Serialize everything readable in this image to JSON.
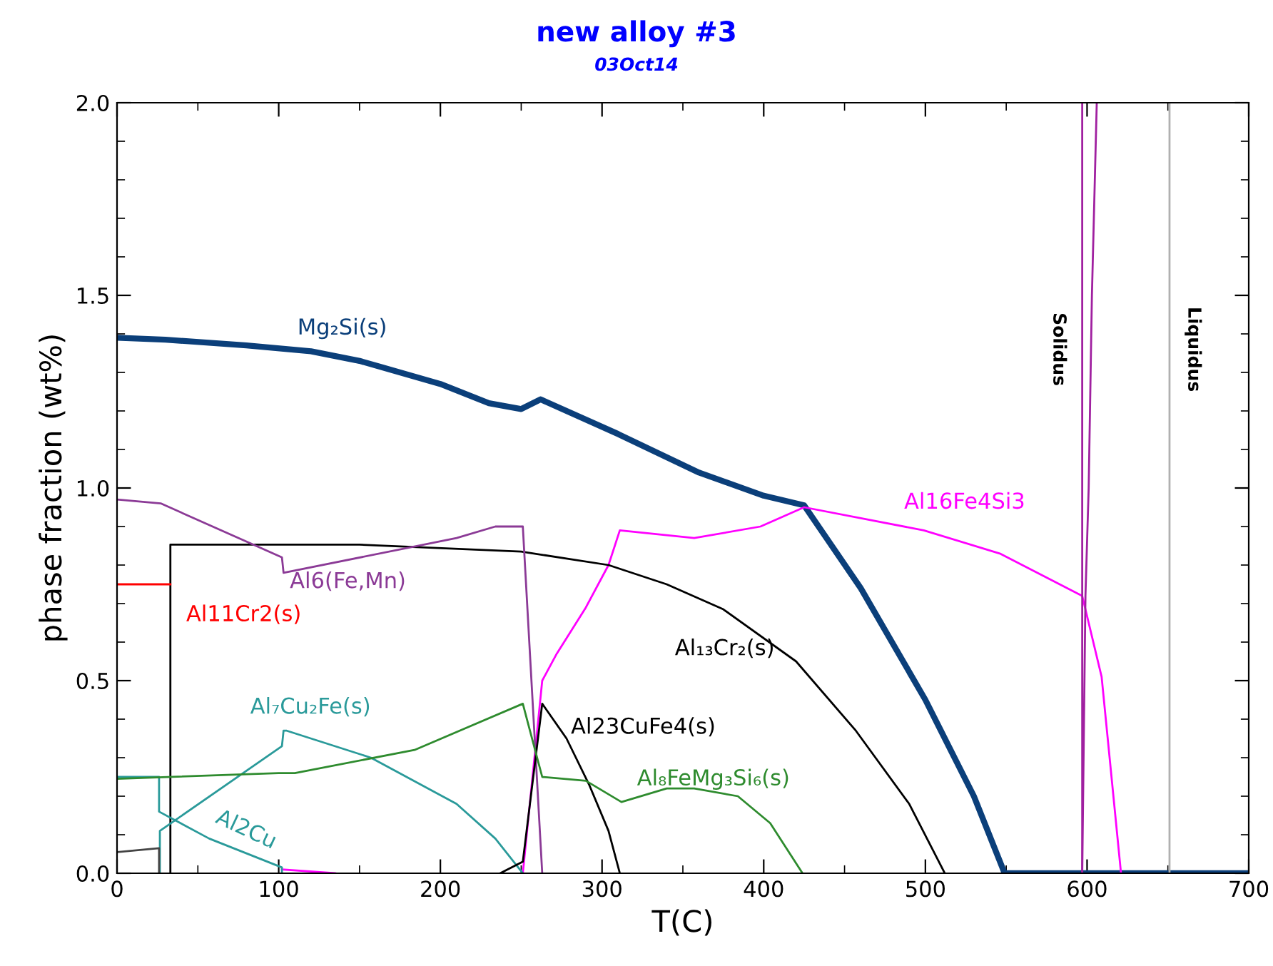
{
  "chart_data": {
    "type": "line",
    "title": "new alloy #3",
    "subtitle": "03Oct14",
    "xlabel": "T(C)",
    "ylabel": "phase fraction (wt%)",
    "xlim": [
      0,
      700
    ],
    "xticks": [
      0,
      100,
      200,
      300,
      400,
      500,
      600,
      700
    ],
    "ylim": [
      0,
      2.0
    ],
    "yticks": [
      {
        "value": 0,
        "label": "0.0"
      },
      {
        "value": 0.5,
        "label": "0.5"
      },
      {
        "value": 1.0,
        "label": "1.0"
      },
      {
        "value": 1.5,
        "label": "1.5"
      },
      {
        "value": 2.0,
        "label": "2.0"
      }
    ],
    "grid": false,
    "legend": false,
    "marker": "none",
    "line_style": "solid",
    "series": [
      {
        "name": "Mg₂Si(s)",
        "color": "#0b3f7a",
        "x": [
          0,
          30,
          80,
          120,
          150,
          200,
          230,
          250,
          262,
          310,
          360,
          400,
          425,
          460,
          500,
          530,
          549,
          700
        ],
        "values": [
          1.39,
          1.385,
          1.37,
          1.355,
          1.33,
          1.27,
          1.22,
          1.205,
          1.23,
          1.14,
          1.04,
          0.98,
          0.955,
          0.74,
          0.45,
          0.2,
          0,
          0
        ]
      },
      {
        "name": "Al16Fe4Si3",
        "color": "#ff00ff",
        "x": [
          102,
          135,
          null,
          251,
          263,
          272,
          290,
          304,
          311,
          357,
          398,
          425,
          499,
          546,
          597,
          609,
          621
        ],
        "values": [
          0.01,
          0,
          null,
          0,
          0.5,
          0.57,
          0.69,
          0.8,
          0.89,
          0.87,
          0.9,
          0.95,
          0.89,
          0.83,
          0.72,
          0.51,
          0
        ]
      },
      {
        "name": "Al₁₃Cr₂(s)",
        "color": "#000000",
        "x": [
          33,
          33,
          150,
          250,
          304,
          340,
          375,
          420,
          457,
          490,
          512
        ],
        "values": [
          0,
          0.853,
          0.853,
          0.835,
          0.8,
          0.75,
          0.685,
          0.55,
          0.37,
          0.18,
          0
        ]
      },
      {
        "name": "Al6(Fe,Mn)",
        "color": "#8b3a96",
        "x": [
          0,
          27,
          102,
          103,
          210,
          234,
          251,
          263
        ],
        "values": [
          0.97,
          0.96,
          0.82,
          0.78,
          0.87,
          0.9,
          0.9,
          0
        ]
      },
      {
        "name": "Al11Cr2(s)",
        "color": "#ff0000",
        "x": [
          0,
          33
        ],
        "values": [
          0.75,
          0.75
        ]
      },
      {
        "name": "Al₇Cu₂Fe(s)",
        "color": "#2a9a9a",
        "x": [
          26.5,
          26.5,
          102,
          103,
          105,
          157,
          210,
          234,
          251
        ],
        "values": [
          0,
          0.11,
          0.33,
          0.37,
          0.37,
          0.3,
          0.18,
          0.09,
          0
        ]
      },
      {
        "name": "Al2Cu",
        "color": "#2a9a9a",
        "x": [
          0,
          26,
          26,
          57,
          102,
          102
        ],
        "values": [
          0.25,
          0.25,
          0.16,
          0.09,
          0.015,
          0
        ]
      },
      {
        "name": "Al23CuFe4(s)",
        "color": "#000000",
        "x": [
          237,
          251,
          263,
          278,
          292,
          304,
          311
        ],
        "values": [
          0,
          0.03,
          0.44,
          0.35,
          0.23,
          0.11,
          0
        ]
      },
      {
        "name": "Al₈FeMg₃Si₆(s)",
        "color": "#2e8b2e",
        "x": [
          0,
          100,
          110,
          184,
          251,
          263,
          290,
          312,
          340,
          357,
          384,
          404,
          424
        ],
        "values": [
          0.245,
          0.26,
          0.26,
          0.32,
          0.44,
          0.25,
          0.24,
          0.185,
          0.22,
          0.22,
          0.2,
          0.13,
          0
        ]
      },
      {
        "color": "#444444",
        "x": [
          0,
          26,
          26
        ],
        "values": [
          0.055,
          0.065,
          0
        ]
      },
      {
        "color": "#a020a0",
        "x": [
          597,
          599,
          601,
          603,
          606
        ],
        "values": [
          0,
          0.72,
          1.0,
          1.5,
          2.0
        ]
      }
    ],
    "ref_lines": [
      {
        "axis": "x",
        "value": 597,
        "label": "Solidus",
        "color": "#a020a0"
      },
      {
        "axis": "x",
        "value": 651,
        "label": "Liquidus",
        "color": "#b0b0b0"
      }
    ]
  }
}
